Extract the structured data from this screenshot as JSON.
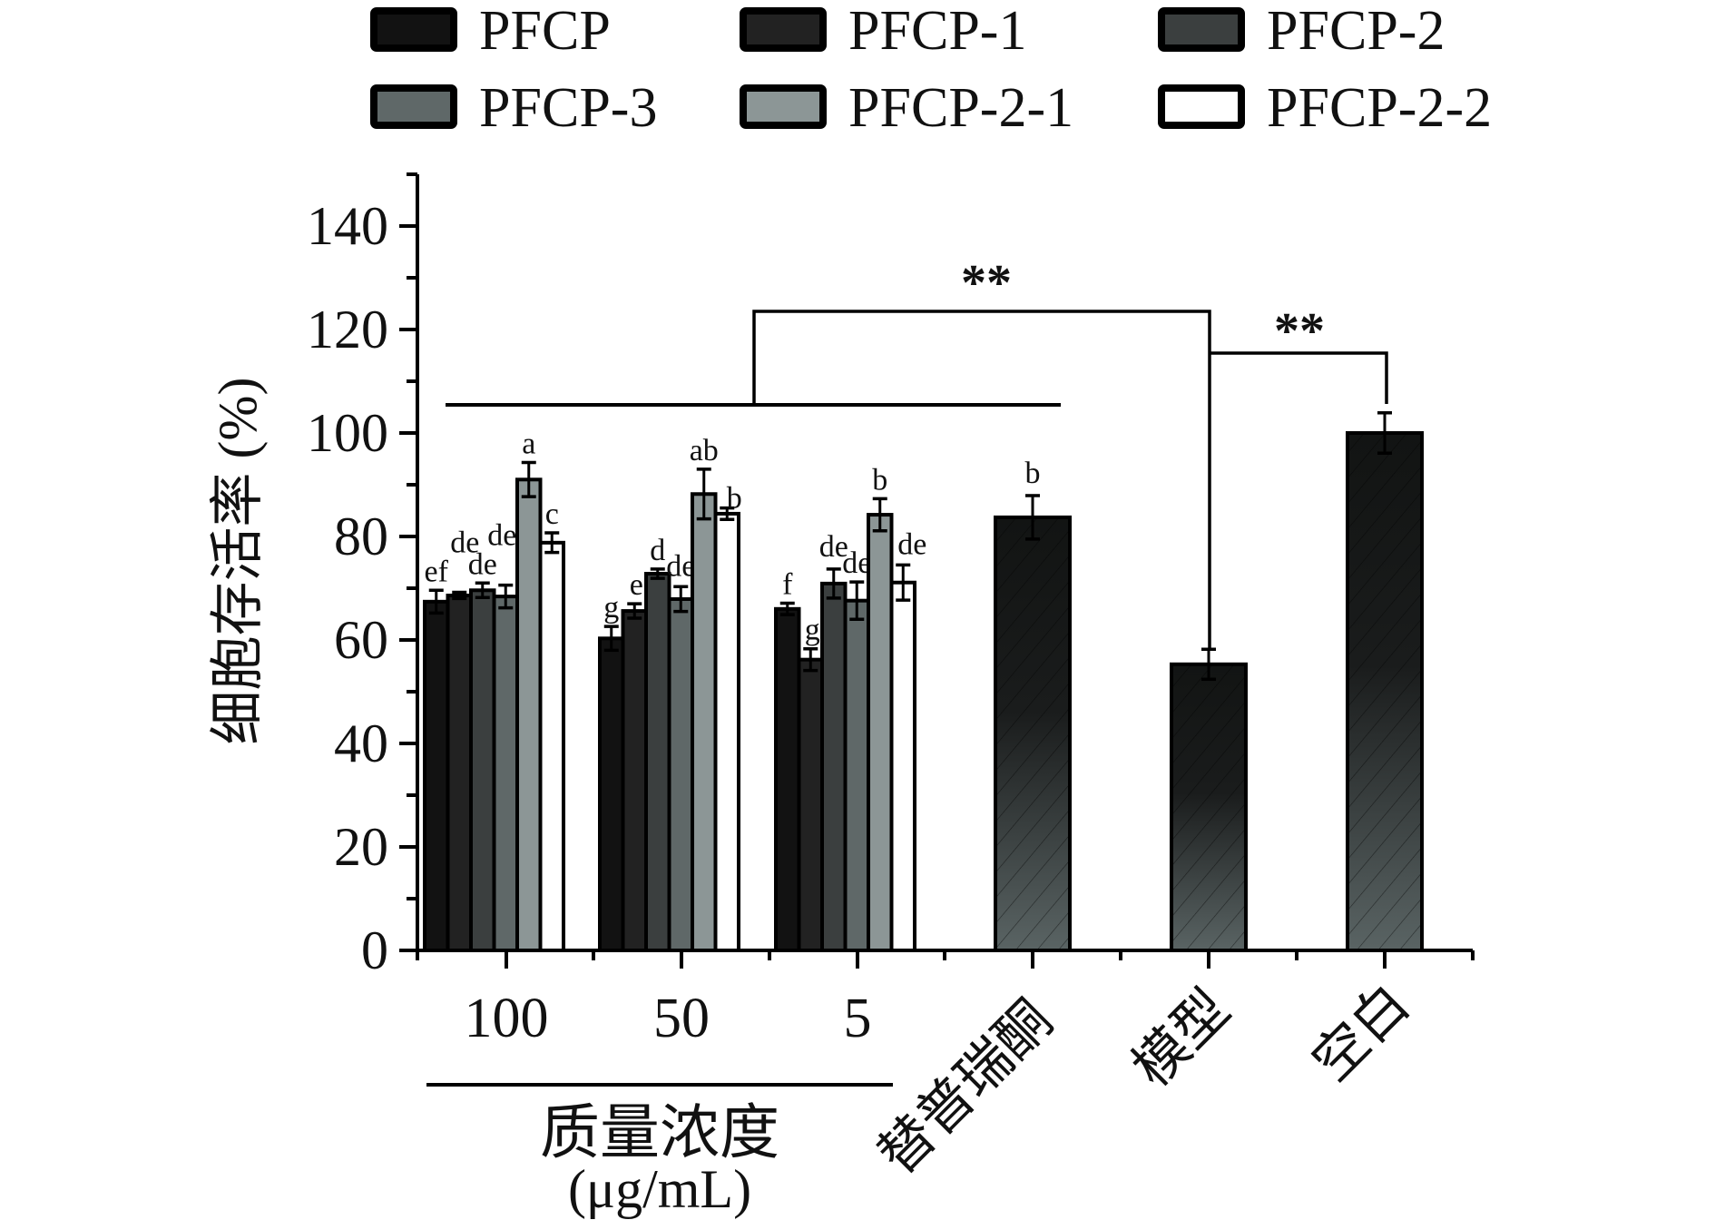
{
  "chart_data": {
    "type": "bar",
    "title": "",
    "ylabel": "细胞存活率 (%)",
    "xlabel_group": "质量浓度",
    "xlabel_group_unit": "(μg/mL)",
    "ylim": [
      0,
      150
    ],
    "yticks": [
      0,
      20,
      40,
      60,
      80,
      100,
      120,
      140
    ],
    "grid": false,
    "legend_position": "top",
    "legend": [
      {
        "name": "PFCP",
        "color": "#121212"
      },
      {
        "name": "PFCP-1",
        "color": "#222222"
      },
      {
        "name": "PFCP-2",
        "color": "#3b3f3f"
      },
      {
        "name": "PFCP-3",
        "color": "#5f6868"
      },
      {
        "name": "PFCP-2-1",
        "color": "#8c9696"
      },
      {
        "name": "PFCP-2-2",
        "color": "#ffffff"
      }
    ],
    "categories": [
      "100",
      "50",
      "5"
    ],
    "series": [
      {
        "name": "PFCP",
        "values": [
          67.4,
          60.3,
          66.0
        ],
        "errors": [
          2.2,
          2.3,
          1.1
        ],
        "letters": [
          "ef",
          "g",
          "f"
        ]
      },
      {
        "name": "PFCP-1",
        "values": [
          68.6,
          65.6,
          56.2
        ],
        "errors": [
          0.6,
          1.4,
          2.1
        ],
        "letters": [
          "de",
          "e",
          "g"
        ]
      },
      {
        "name": "PFCP-2",
        "values": [
          69.6,
          72.8,
          70.9
        ],
        "errors": [
          1.4,
          0.9,
          2.8
        ],
        "letters": [
          "de",
          "d",
          "de"
        ]
      },
      {
        "name": "PFCP-3",
        "values": [
          68.4,
          67.9,
          67.6
        ],
        "errors": [
          2.2,
          2.4,
          3.6
        ],
        "letters": [
          "de",
          "de",
          "de"
        ]
      },
      {
        "name": "PFCP-2-1",
        "values": [
          91.0,
          88.2,
          84.2
        ],
        "errors": [
          3.3,
          4.8,
          3.1
        ],
        "letters": [
          "a",
          "ab",
          "b"
        ]
      },
      {
        "name": "PFCP-2-2",
        "values": [
          78.8,
          84.4,
          71.1
        ],
        "errors": [
          1.9,
          1.1,
          3.4
        ],
        "letters": [
          "c",
          "b",
          "de"
        ]
      }
    ],
    "controls": [
      {
        "name": "替普瑞酮",
        "value": 83.7,
        "error": 4.2,
        "letter": "b"
      },
      {
        "name": "模型",
        "value": 55.3,
        "error": 2.9,
        "letter": ""
      },
      {
        "name": "空白",
        "value": 100.0,
        "error": 3.9,
        "letter": ""
      }
    ],
    "significance": [
      {
        "from": "PFCP groups",
        "to": "模型",
        "label": "**"
      },
      {
        "from": "模型",
        "to": "空白",
        "label": "**"
      }
    ]
  }
}
